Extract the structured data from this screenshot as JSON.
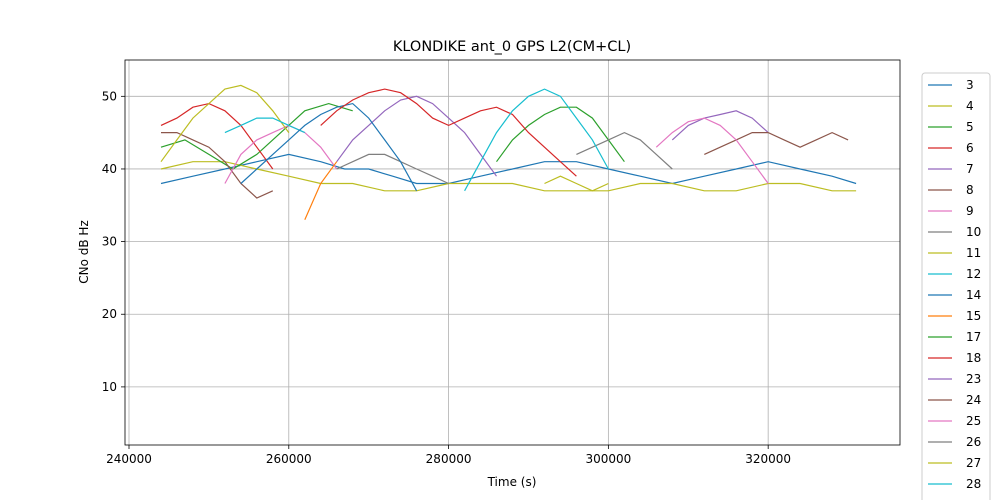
{
  "chart_data": {
    "type": "line",
    "title": "KLONDIKE ant_0 GPS L2(CM+CL)",
    "xlabel": "Time (s)",
    "ylabel": "CNo dB Hz",
    "xlim": [
      239500,
      336500
    ],
    "ylim": [
      2,
      55
    ],
    "xticks": [
      240000,
      260000,
      280000,
      300000,
      320000
    ],
    "xtick_labels": [
      "240000",
      "260000",
      "280000",
      "300000",
      "320000"
    ],
    "yticks": [
      10,
      20,
      30,
      40,
      50
    ],
    "ytick_labels": [
      "10",
      "20",
      "30",
      "40",
      "50"
    ],
    "grid": true,
    "legend_placement": "right-outside",
    "series": [
      {
        "name": "3",
        "color": "#1f77b4",
        "x": [
          244000,
          248000,
          252000,
          256000,
          260000,
          264000,
          267000,
          270000,
          273000,
          276000,
          280000,
          284000,
          288000,
          292000,
          296000,
          300000,
          304000,
          308000,
          312000,
          316000,
          320000,
          324000,
          328000,
          331000
        ],
        "y": [
          38,
          39,
          40,
          41,
          42,
          41,
          40,
          40,
          39,
          38,
          38,
          39,
          40,
          41,
          41,
          40,
          39,
          38,
          39,
          40,
          41,
          40,
          39,
          38
        ]
      },
      {
        "name": "4",
        "color": "#bcbd22",
        "x": [
          244000,
          248000,
          252000,
          256000,
          260000,
          264000,
          268000,
          272000,
          276000,
          280000,
          284000,
          288000,
          292000,
          296000,
          300000,
          304000,
          308000,
          312000,
          316000,
          320000,
          324000,
          328000,
          331000
        ],
        "y": [
          40,
          41,
          41,
          40,
          39,
          38,
          38,
          37,
          37,
          38,
          38,
          38,
          37,
          37,
          37,
          38,
          38,
          37,
          37,
          38,
          38,
          37,
          37
        ]
      },
      {
        "name": "5",
        "color": "#2ca02c",
        "x": [
          244000,
          247000,
          250000,
          253000,
          256000,
          259000,
          262000,
          265000,
          268000
        ],
        "y": [
          43,
          44,
          42,
          40,
          42,
          45,
          48,
          49,
          48
        ]
      },
      {
        "name": "6",
        "color": "#d62728",
        "x": [
          244000,
          246000,
          248000,
          250000,
          252000,
          254000,
          256000,
          258000
        ],
        "y": [
          46,
          47,
          48.5,
          49,
          48,
          46,
          43,
          40
        ]
      },
      {
        "name": "7",
        "color": "#9467bd",
        "x": [
          266000,
          268000,
          270000,
          272000,
          274000,
          276000,
          278000,
          280000,
          282000,
          284000,
          286000
        ],
        "y": [
          41,
          44,
          46,
          48,
          49.5,
          50,
          49,
          47,
          45,
          42,
          39
        ]
      },
      {
        "name": "8",
        "color": "#8c564b",
        "x": [
          244000,
          246000,
          248000,
          250000,
          252000,
          254000,
          256000,
          258000
        ],
        "y": [
          45,
          45,
          44,
          43,
          41,
          38,
          36,
          37
        ]
      },
      {
        "name": "9",
        "color": "#e377c2",
        "x": [
          252000,
          254000,
          256000,
          258000,
          260000,
          262000,
          264000,
          266000
        ],
        "y": [
          38,
          42,
          44,
          45,
          46,
          45,
          43,
          40
        ]
      },
      {
        "name": "10",
        "color": "#7f7f7f",
        "x": [
          266000,
          268000,
          270000,
          272000,
          274000,
          276000,
          278000,
          280000
        ],
        "y": [
          40,
          41,
          42,
          42,
          41,
          40,
          39,
          38
        ]
      },
      {
        "name": "11",
        "color": "#bcbd22",
        "x": [
          244000,
          246000,
          248000,
          250000,
          252000,
          254000,
          256000,
          258000,
          260000
        ],
        "y": [
          41,
          44,
          47,
          49,
          51,
          51.5,
          50.5,
          48,
          45
        ]
      },
      {
        "name": "12",
        "color": "#17becf",
        "x": [
          252000,
          254000,
          256000,
          258000,
          260000,
          262000
        ],
        "y": [
          45,
          46,
          47,
          47,
          46,
          45
        ]
      },
      {
        "name": "14",
        "color": "#1f77b4",
        "x": [
          254000,
          256000,
          258000,
          260000,
          262000,
          264000,
          266000,
          268000,
          270000,
          272000,
          274000,
          276000
        ],
        "y": [
          38,
          40,
          42,
          44,
          46,
          47.5,
          48.5,
          49,
          47,
          44,
          41,
          37
        ]
      },
      {
        "name": "15",
        "color": "#ff7f0e",
        "x": [
          262000,
          264000,
          266000
        ],
        "y": [
          33,
          38,
          41
        ]
      },
      {
        "name": "17",
        "color": "#2ca02c",
        "x": [
          286000,
          288000,
          290000,
          292000,
          294000,
          296000,
          298000,
          300000,
          302000
        ],
        "y": [
          41,
          44,
          46,
          47.5,
          48.5,
          48.5,
          47,
          44,
          41
        ]
      },
      {
        "name": "18",
        "color": "#d62728",
        "x": [
          264000,
          266000,
          268000,
          270000,
          272000,
          274000,
          276000,
          278000,
          280000,
          282000,
          284000,
          286000,
          288000,
          290000,
          292000,
          294000,
          296000
        ],
        "y": [
          46,
          48,
          49.5,
          50.5,
          51,
          50.5,
          49,
          47,
          46,
          47,
          48,
          48.5,
          47.5,
          45,
          43,
          41,
          39
        ]
      },
      {
        "name": "23",
        "color": "#9467bd",
        "x": [
          308000,
          310000,
          312000,
          314000,
          316000,
          318000,
          320000
        ],
        "y": [
          44,
          46,
          47,
          47.5,
          48,
          47,
          45
        ]
      },
      {
        "name": "24",
        "color": "#8c564b",
        "x": [
          312000,
          314000,
          316000,
          318000,
          320000,
          322000,
          324000,
          326000,
          328000,
          330000
        ],
        "y": [
          42,
          43,
          44,
          45,
          45,
          44,
          43,
          44,
          45,
          44
        ]
      },
      {
        "name": "25",
        "color": "#e377c2",
        "x": [
          306000,
          308000,
          310000,
          312000,
          314000,
          316000,
          318000,
          320000
        ],
        "y": [
          43,
          45,
          46.5,
          47,
          46,
          44,
          41,
          38
        ]
      },
      {
        "name": "26",
        "color": "#7f7f7f",
        "x": [
          296000,
          298000,
          300000,
          302000,
          304000,
          306000,
          308000
        ],
        "y": [
          42,
          43,
          44,
          45,
          44,
          42,
          40
        ]
      },
      {
        "name": "27",
        "color": "#bcbd22",
        "x": [
          292000,
          294000,
          296000,
          298000,
          300000
        ],
        "y": [
          38,
          39,
          38,
          37,
          38
        ]
      },
      {
        "name": "28",
        "color": "#17becf",
        "x": [
          282000,
          284000,
          286000,
          288000,
          290000,
          292000,
          294000,
          296000,
          298000,
          300000
        ],
        "y": [
          37,
          41,
          45,
          48,
          50,
          51,
          50,
          47,
          44,
          40
        ]
      }
    ]
  }
}
